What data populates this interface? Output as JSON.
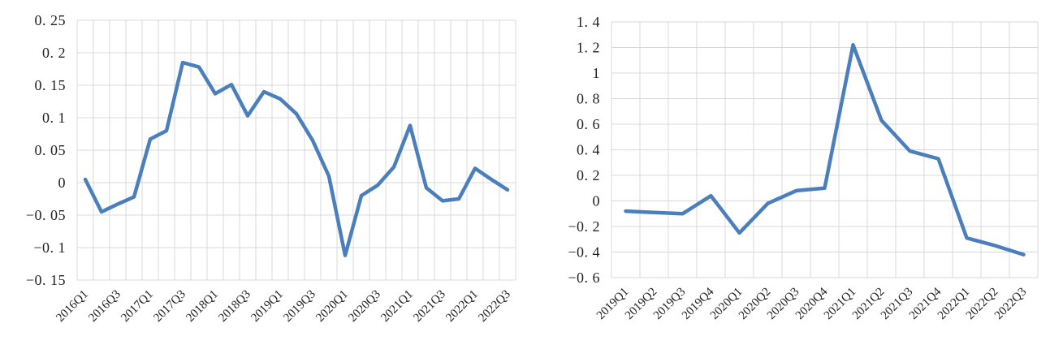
{
  "page": {
    "background": "#ffffff"
  },
  "chart_data": [
    {
      "type": "line",
      "position": "left",
      "title": "",
      "legend": "none",
      "grid": true,
      "line_color": "#4A7EBD",
      "grid_color": "#D8D8D8",
      "text_color": "#1f1f1f",
      "ylim": [
        -0.15,
        0.25
      ],
      "ytick_step": 0.05,
      "y_ticks": [
        0.25,
        0.2,
        0.15,
        0.1,
        0.05,
        0,
        -0.05,
        -0.1,
        -0.15
      ],
      "y_tick_labels": [
        "0. 25",
        "0. 2",
        "0. 15",
        "0. 1",
        "0. 05",
        "0",
        "−0. 05",
        "−0. 1",
        "−0. 15"
      ],
      "x_label_every": 2,
      "x_tick_labels": [
        "2016Q1",
        "2016Q3",
        "2017Q1",
        "2017Q3",
        "2018Q1",
        "2018Q3",
        "2019Q1",
        "2019Q3",
        "2020Q1",
        "2020Q3",
        "2021Q1",
        "2021Q3",
        "2022Q1",
        "2022Q3"
      ],
      "categories": [
        "2016Q1",
        "2016Q2",
        "2016Q3",
        "2016Q4",
        "2017Q1",
        "2017Q2",
        "2017Q3",
        "2017Q4",
        "2018Q1",
        "2018Q2",
        "2018Q3",
        "2018Q4",
        "2019Q1",
        "2019Q2",
        "2019Q3",
        "2019Q4",
        "2020Q1",
        "2020Q2",
        "2020Q3",
        "2020Q4",
        "2021Q1",
        "2021Q2",
        "2021Q3",
        "2021Q4",
        "2022Q1",
        "2022Q2",
        "2022Q3"
      ],
      "values": [
        0.005,
        -0.045,
        -0.033,
        -0.022,
        0.067,
        0.08,
        0.185,
        0.178,
        0.137,
        0.151,
        0.103,
        0.14,
        0.129,
        0.106,
        0.065,
        0.01,
        -0.112,
        -0.02,
        -0.004,
        0.024,
        0.088,
        -0.008,
        -0.028,
        -0.025,
        0.022,
        0.005,
        -0.011
      ]
    },
    {
      "type": "line",
      "position": "right",
      "title": "",
      "legend": "none",
      "grid": true,
      "line_color": "#4A7EBD",
      "grid_color": "#D8D8D8",
      "text_color": "#1f1f1f",
      "ylim": [
        -0.6,
        1.4
      ],
      "ytick_step": 0.2,
      "y_ticks": [
        1.4,
        1.2,
        1,
        0.8,
        0.6,
        0.4,
        0.2,
        0,
        -0.2,
        -0.4,
        -0.6
      ],
      "y_tick_labels": [
        "1. 4",
        "1. 2",
        "1",
        "0. 8",
        "0. 6",
        "0. 4",
        "0. 2",
        "0",
        "−0. 2",
        "−0. 4",
        "−0. 6"
      ],
      "x_label_every": 1,
      "x_tick_labels": [
        "2019Q1",
        "2019Q2",
        "2019Q3",
        "2019Q4",
        "2020Q1",
        "2020Q2",
        "2020Q3",
        "2020Q4",
        "2021Q1",
        "2021Q2",
        "2021Q3",
        "2021Q4",
        "2022Q1",
        "2022Q2",
        "2022Q3"
      ],
      "categories": [
        "2019Q1",
        "2019Q2",
        "2019Q3",
        "2019Q4",
        "2020Q1",
        "2020Q2",
        "2020Q3",
        "2020Q4",
        "2021Q1",
        "2021Q2",
        "2021Q3",
        "2021Q4",
        "2022Q1",
        "2022Q2",
        "2022Q3"
      ],
      "values": [
        -0.08,
        -0.09,
        -0.1,
        0.04,
        -0.25,
        -0.02,
        0.08,
        0.1,
        1.22,
        0.63,
        0.39,
        0.33,
        -0.29,
        -0.35,
        -0.42
      ]
    }
  ]
}
